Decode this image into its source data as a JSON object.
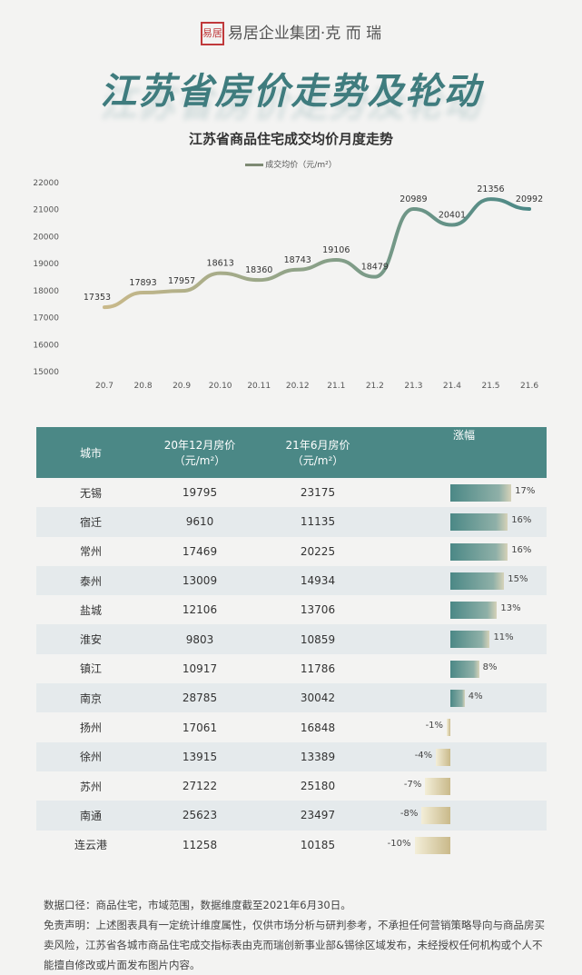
{
  "brand": {
    "seal": "易居",
    "name": "易居企业集团·克 而 瑞"
  },
  "title": "江苏省房价走势及轮动",
  "chart_data": [
    {
      "type": "line",
      "title": "江苏省商品住宅成交均价月度走势",
      "legend": "成交均价（元/m²）",
      "categories": [
        "20.7",
        "20.8",
        "20.9",
        "20.10",
        "20.11",
        "20.12",
        "21.1",
        "21.2",
        "21.3",
        "21.4",
        "21.5",
        "21.6"
      ],
      "series": [
        {
          "name": "成交均价（元/m²）",
          "values": [
            17353,
            17893,
            17957,
            18613,
            18360,
            18743,
            19106,
            18479,
            20989,
            20401,
            21356,
            20992
          ]
        }
      ],
      "yticks": [
        15000,
        16000,
        17000,
        18000,
        19000,
        20000,
        21000,
        22000
      ],
      "ylim": [
        15000,
        22000
      ],
      "colors": {
        "start": "#c9b98a",
        "end": "#4b8886"
      }
    },
    {
      "type": "table",
      "headers": [
        "城市",
        "20年12月房价\n（元/m²）",
        "21年6月房价\n（元/m²）",
        "涨幅"
      ],
      "rows": [
        [
          "无锡",
          "19795",
          "23175",
          17
        ],
        [
          "宿迁",
          "9610",
          "11135",
          16
        ],
        [
          "常州",
          "17469",
          "20225",
          16
        ],
        [
          "泰州",
          "13009",
          "14934",
          15
        ],
        [
          "盐城",
          "12106",
          "13706",
          13
        ],
        [
          "淮安",
          "9803",
          "10859",
          11
        ],
        [
          "镇江",
          "10917",
          "11786",
          8
        ],
        [
          "南京",
          "28785",
          "30042",
          4
        ],
        [
          "扬州",
          "17061",
          "16848",
          -1
        ],
        [
          "徐州",
          "13915",
          "13389",
          -4
        ],
        [
          "苏州",
          "27122",
          "25180",
          -7
        ],
        [
          "南通",
          "25623",
          "23497",
          -8
        ],
        [
          "连云港",
          "11258",
          "10185",
          -10
        ]
      ]
    }
  ],
  "notes": [
    "数据口径：商品住宅，市域范围，数据维度截至2021年6月30日。",
    "免责声明：上述图表具有一定统计维度属性，仅供市场分析与研判参考，不承担任何营销策略导向与商品房买卖风险，江苏省各城市商品住宅成交指标表由克而瑞创新事业部&锡徐区域发布，未经授权任何机构或个人不能擅自修改或片面发布图片内容。"
  ]
}
